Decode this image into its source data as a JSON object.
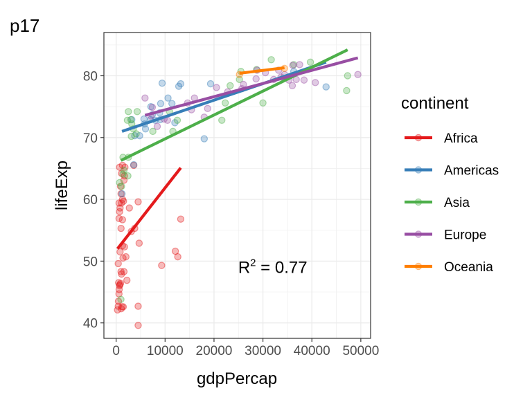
{
  "chart_data": {
    "type": "scatter",
    "tag": "p17",
    "xlabel": "gdpPercap",
    "ylabel": "lifeExp",
    "xlim": [
      -2500,
      52000
    ],
    "ylim": [
      37.5,
      87
    ],
    "xticks": [
      0,
      10000,
      20000,
      30000,
      40000,
      50000
    ],
    "xtick_labels": [
      "0",
      "10000",
      "20000",
      "30000",
      "40000",
      "50000"
    ],
    "yticks": [
      40,
      50,
      60,
      70,
      80
    ],
    "ytick_labels": [
      "40",
      "50",
      "60",
      "70",
      "80"
    ],
    "grid": true,
    "legend": {
      "title": "continent",
      "placement": "right"
    },
    "annotation": {
      "prefix": "R",
      "superscript": "2",
      "text": " = 0.77",
      "x": 32000,
      "y": 49
    },
    "series": [
      {
        "name": "Africa",
        "color": "#e41a1c",
        "points": [
          [
            277,
            42.1
          ],
          [
            430,
            42.7
          ],
          [
            470,
            43.5
          ],
          [
            580,
            44.7
          ],
          [
            620,
            45.4
          ],
          [
            700,
            46.0
          ],
          [
            760,
            46.2
          ],
          [
            500,
            46.5
          ],
          [
            900,
            46.4
          ],
          [
            1040,
            42.3
          ],
          [
            1200,
            42.6
          ],
          [
            1450,
            42.6
          ],
          [
            4500,
            42.7
          ],
          [
            4500,
            39.6
          ],
          [
            1000,
            48.3
          ],
          [
            1100,
            47.9
          ],
          [
            1600,
            48.3
          ],
          [
            1400,
            50.5
          ],
          [
            2000,
            50.7
          ],
          [
            2200,
            46.9
          ],
          [
            430,
            49.6
          ],
          [
            800,
            51.5
          ],
          [
            1300,
            52.5
          ],
          [
            1700,
            52.3
          ],
          [
            3100,
            54.8
          ],
          [
            3800,
            55.3
          ],
          [
            1000,
            55.3
          ],
          [
            600,
            56.9
          ],
          [
            1300,
            56.7
          ],
          [
            4700,
            52.9
          ],
          [
            700,
            58.0
          ],
          [
            800,
            58.6
          ],
          [
            1100,
            59.4
          ],
          [
            600,
            59.4
          ],
          [
            1500,
            59.7
          ],
          [
            2700,
            58.6
          ],
          [
            4500,
            59.6
          ],
          [
            1300,
            60.0
          ],
          [
            1000,
            60.9
          ],
          [
            1600,
            63.1
          ],
          [
            900,
            62.1
          ],
          [
            1100,
            64.2
          ],
          [
            1700,
            63.8
          ],
          [
            1800,
            65.2
          ],
          [
            1300,
            65.5
          ],
          [
            3600,
            65.5
          ],
          [
            700,
            65.2
          ],
          [
            9300,
            49.3
          ],
          [
            12100,
            51.6
          ],
          [
            12600,
            50.7
          ],
          [
            13200,
            56.8
          ]
        ]
      },
      {
        "name": "Americas",
        "color": "#377eb8",
        "points": [
          [
            1200,
            60.9
          ],
          [
            3600,
            65.6
          ],
          [
            3800,
            70.3
          ],
          [
            4800,
            70.3
          ],
          [
            5800,
            72.2
          ],
          [
            6000,
            71.4
          ],
          [
            7000,
            72.9
          ],
          [
            7400,
            73.7
          ],
          [
            8000,
            72.8
          ],
          [
            9000,
            72.9
          ],
          [
            9100,
            75.5
          ],
          [
            10600,
            76.4
          ],
          [
            11400,
            75.5
          ],
          [
            12000,
            72.4
          ],
          [
            12800,
            78.3
          ],
          [
            13200,
            78.7
          ],
          [
            18000,
            69.8
          ],
          [
            19300,
            78.7
          ],
          [
            9400,
            78.8
          ],
          [
            36300,
            80.7
          ],
          [
            42900,
            78.2
          ],
          [
            7100,
            75.0
          ],
          [
            8900,
            74.0
          ],
          [
            3200,
            72.9
          ],
          [
            5700,
            73.0
          ]
        ]
      },
      {
        "name": "Asia",
        "color": "#4daf4a",
        "points": [
          [
            975,
            43.8
          ],
          [
            1400,
            64.1
          ],
          [
            1600,
            64.7
          ],
          [
            2400,
            63.8
          ],
          [
            2500,
            66.8
          ],
          [
            700,
            62.7
          ],
          [
            1100,
            62.1
          ],
          [
            3200,
            72.2
          ],
          [
            3500,
            71.4
          ],
          [
            4300,
            74.2
          ],
          [
            2500,
            74.2
          ],
          [
            3000,
            72.9
          ],
          [
            3100,
            70.2
          ],
          [
            4100,
            70.6
          ],
          [
            7500,
            71.0
          ],
          [
            10900,
            74.2
          ],
          [
            11600,
            71.0
          ],
          [
            12500,
            72.8
          ],
          [
            21600,
            72.8
          ],
          [
            22300,
            75.6
          ],
          [
            23300,
            78.4
          ],
          [
            25200,
            79.4
          ],
          [
            25500,
            80.7
          ],
          [
            28700,
            81.0
          ],
          [
            31700,
            82.6
          ],
          [
            30000,
            75.6
          ],
          [
            36300,
            81.8
          ],
          [
            39700,
            82.2
          ],
          [
            47300,
            80.0
          ],
          [
            47100,
            77.6
          ],
          [
            1400,
            66.8
          ],
          [
            2300,
            72.8
          ]
        ]
      },
      {
        "name": "Europe",
        "color": "#984ea3",
        "points": [
          [
            5900,
            76.4
          ],
          [
            7400,
            74.9
          ],
          [
            8400,
            71.8
          ],
          [
            9800,
            73.0
          ],
          [
            10500,
            72.8
          ],
          [
            14600,
            75.6
          ],
          [
            15400,
            74.5
          ],
          [
            16000,
            76.4
          ],
          [
            18000,
            73.3
          ],
          [
            18700,
            74.7
          ],
          [
            20500,
            78.1
          ],
          [
            22800,
            77.4
          ],
          [
            25700,
            77.9
          ],
          [
            26000,
            78.6
          ],
          [
            28600,
            79.5
          ],
          [
            30500,
            80.5
          ],
          [
            32200,
            79.4
          ],
          [
            33200,
            80.9
          ],
          [
            33700,
            79.8
          ],
          [
            34400,
            80.2
          ],
          [
            35300,
            79.3
          ],
          [
            36100,
            81.7
          ],
          [
            36800,
            79.4
          ],
          [
            37500,
            81.8
          ],
          [
            38400,
            79.3
          ],
          [
            40700,
            78.9
          ],
          [
            49400,
            80.2
          ],
          [
            28800,
            80.9
          ],
          [
            36000,
            78.4
          ],
          [
            7100,
            73.5
          ]
        ]
      },
      {
        "name": "Oceania",
        "color": "#ff7f00",
        "points": [
          [
            25200,
            80.2
          ],
          [
            34400,
            81.2
          ]
        ]
      }
    ],
    "fit_lines": [
      {
        "name": "Africa",
        "x": [
          277,
          13200
        ],
        "y": [
          52.0,
          65.1
        ]
      },
      {
        "name": "Americas",
        "x": [
          1200,
          42900
        ],
        "y": [
          71.0,
          82.2
        ]
      },
      {
        "name": "Asia",
        "x": [
          975,
          47300
        ],
        "y": [
          66.3,
          84.2
        ]
      },
      {
        "name": "Europe",
        "x": [
          5900,
          49400
        ],
        "y": [
          73.6,
          82.9
        ]
      },
      {
        "name": "Oceania",
        "x": [
          25200,
          34400
        ],
        "y": [
          80.4,
          81.3
        ]
      }
    ]
  }
}
